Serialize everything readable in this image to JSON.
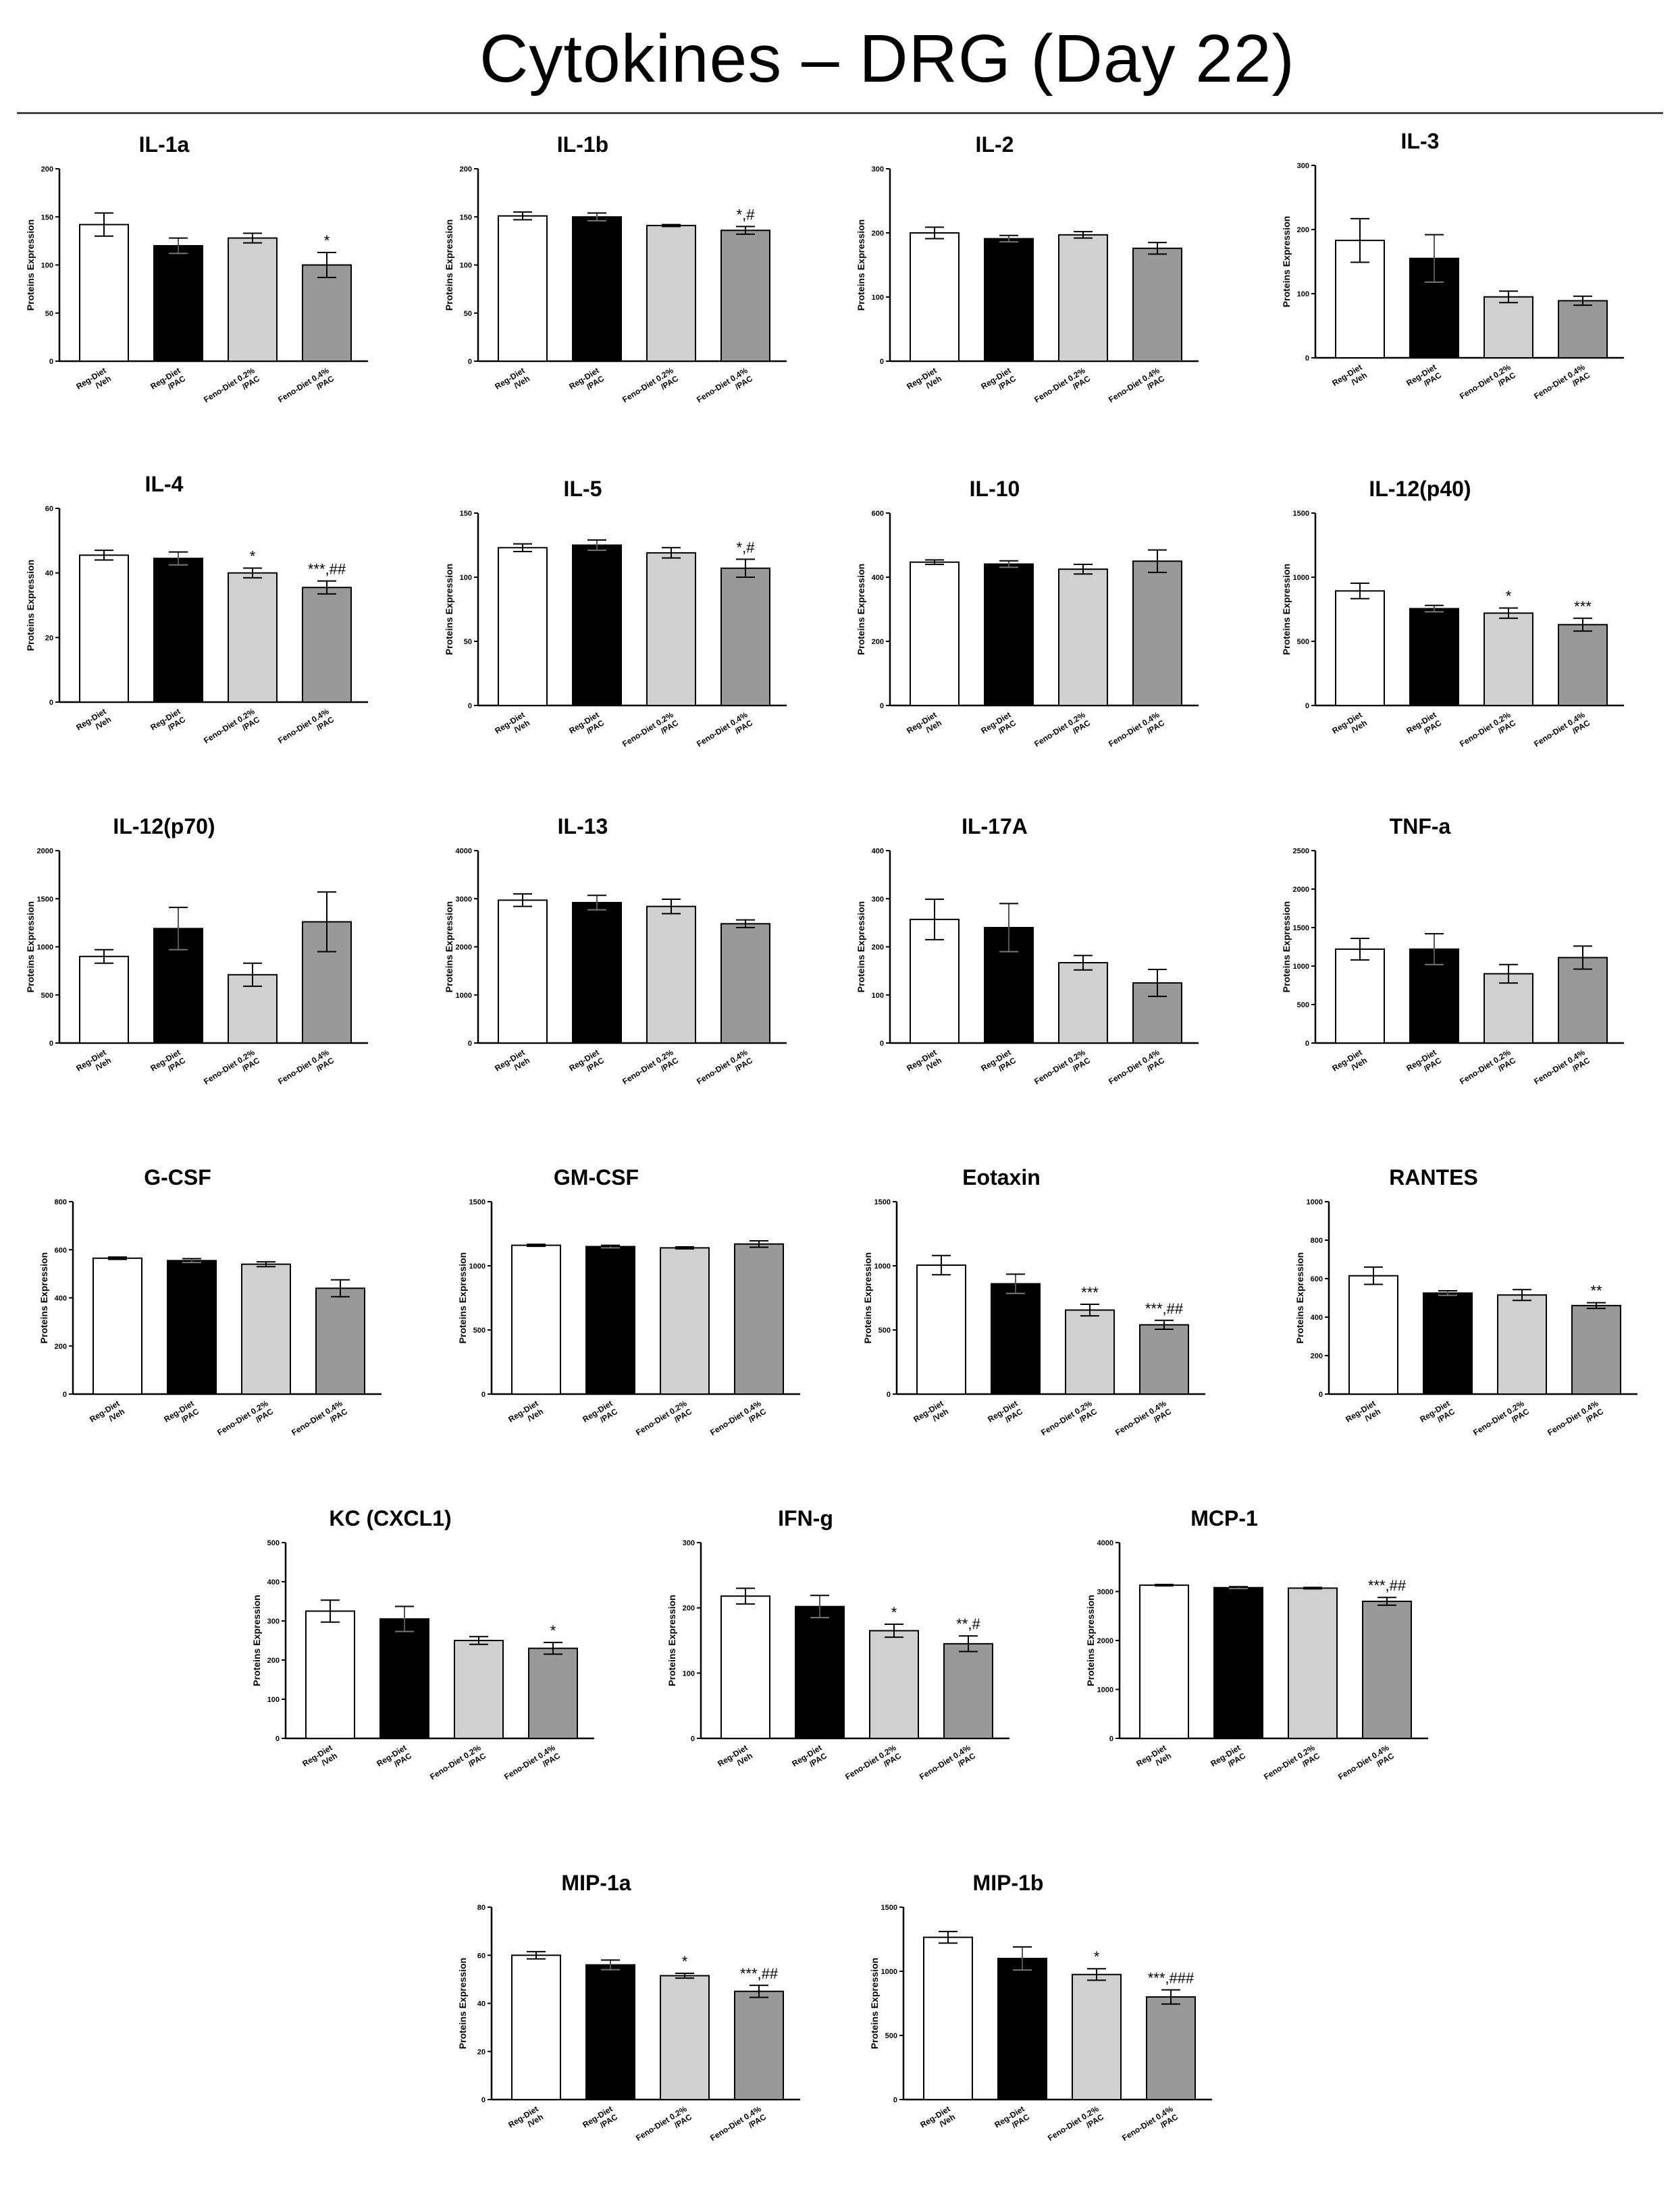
{
  "page": {
    "title": "Cytokines – DRG (Day 22)"
  },
  "styles": {
    "bar_colors": [
      "#ffffff",
      "#000000",
      "#d0d0d0",
      "#999999"
    ],
    "stroke": "#000000"
  },
  "chart_data": [
    {
      "type": "bar",
      "title": "IL-1a",
      "ylabel": "Proteins Expression",
      "ylim": [
        0,
        200
      ],
      "yticks": [
        0,
        50,
        100,
        150,
        200
      ],
      "categories": [
        "Reg-Diet /Veh",
        "Reg-Diet /PAC",
        "Feno-Diet 0.2% /PAC",
        "Feno-Diet 0.4% /PAC"
      ],
      "values": [
        142,
        120,
        128,
        100
      ],
      "errors": [
        12,
        8,
        5,
        13
      ],
      "annotations": [
        "",
        "",
        "",
        "*"
      ]
    },
    {
      "type": "bar",
      "title": "IL-1b",
      "ylabel": "Proteins Expression",
      "ylim": [
        0,
        200
      ],
      "yticks": [
        0,
        50,
        100,
        150,
        200
      ],
      "categories": [
        "Reg-Diet /Veh",
        "Reg-Diet /PAC",
        "Feno-Diet 0.2% /PAC",
        "Feno-Diet 0.4% /PAC"
      ],
      "values": [
        151,
        150,
        141,
        136
      ],
      "errors": [
        4,
        4,
        1,
        4
      ],
      "annotations": [
        "",
        "",
        "",
        "*,#"
      ]
    },
    {
      "type": "bar",
      "title": "IL-2",
      "ylabel": "Proteins Expression",
      "ylim": [
        0,
        300
      ],
      "yticks": [
        0,
        100,
        200,
        300
      ],
      "categories": [
        "Reg-Diet /Veh",
        "Reg-Diet /PAC",
        "Feno-Diet 0.2% /PAC",
        "Feno-Diet 0.4% /PAC"
      ],
      "values": [
        200,
        191,
        197,
        176
      ],
      "errors": [
        9,
        5,
        5,
        9
      ],
      "annotations": [
        "",
        "",
        "",
        ""
      ]
    },
    {
      "type": "bar",
      "title": "IL-3",
      "ylabel": "Proteins Expression",
      "ylim": [
        0,
        300
      ],
      "yticks": [
        0,
        100,
        200,
        300
      ],
      "categories": [
        "Reg-Diet /Veh",
        "Reg-Diet /PAC",
        "Feno-Diet 0.2% /PAC",
        "Feno-Diet 0.4% /PAC"
      ],
      "values": [
        183,
        155,
        95,
        89
      ],
      "errors": [
        34,
        37,
        9,
        7
      ],
      "annotations": [
        "",
        "",
        "",
        ""
      ]
    },
    {
      "type": "bar",
      "title": "IL-4",
      "ylabel": "Proteins Expression",
      "ylim": [
        0,
        60
      ],
      "yticks": [
        0,
        20,
        40,
        60
      ],
      "categories": [
        "Reg-Diet /Veh",
        "Reg-Diet /PAC",
        "Feno-Diet 0.2% /PAC",
        "Feno-Diet 0.4% /PAC"
      ],
      "values": [
        45.5,
        44.5,
        40,
        35.5
      ],
      "errors": [
        1.5,
        2,
        1.5,
        2
      ],
      "annotations": [
        "",
        "",
        "*",
        "***,##"
      ]
    },
    {
      "type": "bar",
      "title": "IL-5",
      "ylabel": "Proteins Expression",
      "ylim": [
        0,
        150
      ],
      "yticks": [
        0,
        50,
        100,
        150
      ],
      "categories": [
        "Reg-Diet /Veh",
        "Reg-Diet /PAC",
        "Feno-Diet 0.2% /PAC",
        "Feno-Diet 0.4% /PAC"
      ],
      "values": [
        123,
        125,
        119,
        107
      ],
      "errors": [
        3,
        4,
        4,
        7
      ],
      "annotations": [
        "",
        "",
        "",
        "*,#"
      ]
    },
    {
      "type": "bar",
      "title": "IL-10",
      "ylabel": "Proteins Expression",
      "ylim": [
        0,
        600
      ],
      "yticks": [
        0,
        200,
        400,
        600
      ],
      "categories": [
        "Reg-Diet /Veh",
        "Reg-Diet /PAC",
        "Feno-Diet 0.2% /PAC",
        "Feno-Diet 0.4% /PAC"
      ],
      "values": [
        447,
        441,
        425,
        450
      ],
      "errors": [
        7,
        10,
        15,
        35
      ],
      "annotations": [
        "",
        "",
        "",
        ""
      ]
    },
    {
      "type": "bar",
      "title": "IL-12(p40)",
      "ylabel": "Proteins Expression",
      "ylim": [
        0,
        1500
      ],
      "yticks": [
        0,
        500,
        1000,
        1500
      ],
      "categories": [
        "Reg-Diet /Veh",
        "Reg-Diet /PAC",
        "Feno-Diet 0.2% /PAC",
        "Feno-Diet 0.4% /PAC"
      ],
      "values": [
        893,
        755,
        720,
        630
      ],
      "errors": [
        60,
        25,
        40,
        50
      ],
      "annotations": [
        "",
        "",
        "*",
        "***"
      ]
    },
    {
      "type": "bar",
      "title": "IL-12(p70)",
      "ylabel": "Proteins Expression",
      "ylim": [
        0,
        2000
      ],
      "yticks": [
        0,
        500,
        1000,
        1500,
        2000
      ],
      "categories": [
        "Reg-Diet /Veh",
        "Reg-Diet /PAC",
        "Feno-Diet 0.2% /PAC",
        "Feno-Diet 0.4% /PAC"
      ],
      "values": [
        900,
        1190,
        710,
        1260
      ],
      "errors": [
        70,
        220,
        120,
        310
      ],
      "annotations": [
        "",
        "",
        "",
        ""
      ]
    },
    {
      "type": "bar",
      "title": "IL-13",
      "ylabel": "Proteins Expression",
      "ylim": [
        0,
        4000
      ],
      "yticks": [
        0,
        1000,
        2000,
        3000,
        4000
      ],
      "categories": [
        "Reg-Diet /Veh",
        "Reg-Diet /PAC",
        "Feno-Diet 0.2% /PAC",
        "Feno-Diet 0.4% /PAC"
      ],
      "values": [
        2970,
        2920,
        2840,
        2480
      ],
      "errors": [
        130,
        150,
        150,
        80
      ],
      "annotations": [
        "",
        "",
        "",
        ""
      ]
    },
    {
      "type": "bar",
      "title": "IL-17A",
      "ylabel": "Proteins Expression",
      "ylim": [
        0,
        400
      ],
      "yticks": [
        0,
        100,
        200,
        300,
        400
      ],
      "categories": [
        "Reg-Diet /Veh",
        "Reg-Diet /PAC",
        "Feno-Diet 0.2% /PAC",
        "Feno-Diet 0.4% /PAC"
      ],
      "values": [
        257,
        240,
        167,
        125
      ],
      "errors": [
        42,
        50,
        15,
        28
      ],
      "annotations": [
        "",
        "",
        "",
        ""
      ]
    },
    {
      "type": "bar",
      "title": "TNF-a",
      "ylabel": "Proteins Expression",
      "ylim": [
        0,
        2500
      ],
      "yticks": [
        0,
        500,
        1000,
        1500,
        2000,
        2500
      ],
      "categories": [
        "Reg-Diet /Veh",
        "Reg-Diet /PAC",
        "Feno-Diet 0.2% /PAC",
        "Feno-Diet 0.4% /PAC"
      ],
      "values": [
        1220,
        1220,
        900,
        1110
      ],
      "errors": [
        140,
        200,
        120,
        150
      ],
      "annotations": [
        "",
        "",
        "",
        ""
      ]
    },
    {
      "type": "bar",
      "title": "G-CSF",
      "ylabel": "Proteins Expression",
      "ylim": [
        0,
        800
      ],
      "yticks": [
        0,
        200,
        400,
        600,
        800
      ],
      "categories": [
        "Reg-Diet /Veh",
        "Reg-Diet /PAC",
        "Feno-Diet 0.2% /PAC",
        "Feno-Diet 0.4% /PAC"
      ],
      "values": [
        565,
        555,
        540,
        440
      ],
      "errors": [
        5,
        8,
        10,
        35
      ],
      "annotations": [
        "",
        "",
        "",
        ""
      ]
    },
    {
      "type": "bar",
      "title": "GM-CSF",
      "ylabel": "Proteins Expression",
      "ylim": [
        0,
        1500
      ],
      "yticks": [
        0,
        500,
        1000,
        1500
      ],
      "categories": [
        "Reg-Diet /Veh",
        "Reg-Diet /PAC",
        "Feno-Diet 0.2% /PAC",
        "Feno-Diet 0.4% /PAC"
      ],
      "values": [
        1160,
        1150,
        1140,
        1170
      ],
      "errors": [
        8,
        10,
        8,
        25
      ],
      "annotations": [
        "",
        "",
        "",
        ""
      ]
    },
    {
      "type": "bar",
      "title": "Eotaxin",
      "ylabel": "Proteins Expression",
      "ylim": [
        0,
        1500
      ],
      "yticks": [
        0,
        500,
        1000,
        1500
      ],
      "categories": [
        "Reg-Diet /Veh",
        "Reg-Diet /PAC",
        "Feno-Diet 0.2% /PAC",
        "Feno-Diet 0.4% /PAC"
      ],
      "values": [
        1005,
        860,
        655,
        540
      ],
      "errors": [
        75,
        75,
        45,
        35
      ],
      "annotations": [
        "",
        "",
        "***",
        "***,##"
      ]
    },
    {
      "type": "bar",
      "title": "RANTES",
      "ylabel": "Proteins Expression",
      "ylim": [
        0,
        1000
      ],
      "yticks": [
        0,
        200,
        400,
        600,
        800,
        1000
      ],
      "categories": [
        "Reg-Diet /Veh",
        "Reg-Diet /PAC",
        "Feno-Diet 0.2% /PAC",
        "Feno-Diet 0.4% /PAC"
      ],
      "values": [
        615,
        525,
        515,
        460
      ],
      "errors": [
        45,
        12,
        28,
        15
      ],
      "annotations": [
        "",
        "",
        "",
        "**"
      ]
    },
    {
      "type": "bar",
      "title": "KC (CXCL1)",
      "ylabel": "Proteins Expression",
      "ylim": [
        0,
        500
      ],
      "yticks": [
        0,
        100,
        200,
        300,
        400,
        500
      ],
      "categories": [
        "Reg-Diet /Veh",
        "Reg-Diet /PAC",
        "Feno-Diet 0.2% /PAC",
        "Feno-Diet 0.4% /PAC"
      ],
      "values": [
        325,
        305,
        250,
        230
      ],
      "errors": [
        28,
        32,
        10,
        15
      ],
      "annotations": [
        "",
        "",
        "",
        "*"
      ]
    },
    {
      "type": "bar",
      "title": "IFN-g",
      "ylabel": "Proteins Expression",
      "ylim": [
        0,
        300
      ],
      "yticks": [
        0,
        100,
        200,
        300
      ],
      "categories": [
        "Reg-Diet /Veh",
        "Reg-Diet /PAC",
        "Feno-Diet 0.2% /PAC",
        "Feno-Diet 0.4% /PAC"
      ],
      "values": [
        218,
        202,
        165,
        145
      ],
      "errors": [
        12,
        17,
        10,
        12
      ],
      "annotations": [
        "",
        "",
        "*",
        "**,#"
      ]
    },
    {
      "type": "bar",
      "title": "MCP-1",
      "ylabel": "Proteins Expression",
      "ylim": [
        0,
        4000
      ],
      "yticks": [
        0,
        1000,
        2000,
        3000,
        4000
      ],
      "categories": [
        "Reg-Diet /Veh",
        "Reg-Diet /PAC",
        "Feno-Diet 0.2% /PAC",
        "Feno-Diet 0.4% /PAC"
      ],
      "values": [
        3130,
        3080,
        3070,
        2800
      ],
      "errors": [
        15,
        20,
        15,
        80
      ],
      "annotations": [
        "",
        "",
        "",
        "***,##"
      ]
    },
    {
      "type": "bar",
      "title": "MIP-1a",
      "ylabel": "Proteins Expression",
      "ylim": [
        0,
        80
      ],
      "yticks": [
        0,
        20,
        40,
        60,
        80
      ],
      "categories": [
        "Reg-Diet /Veh",
        "Reg-Diet /PAC",
        "Feno-Diet 0.2% /PAC",
        "Feno-Diet 0.4% /PAC"
      ],
      "values": [
        60,
        56,
        51.5,
        45
      ],
      "errors": [
        1.5,
        2,
        1,
        2.5
      ],
      "annotations": [
        "",
        "",
        "*",
        "***,##"
      ]
    },
    {
      "type": "bar",
      "title": "MIP-1b",
      "ylabel": "Proteins Expression",
      "ylim": [
        0,
        1500
      ],
      "yticks": [
        0,
        500,
        1000,
        1500
      ],
      "categories": [
        "Reg-Diet /Veh",
        "Reg-Diet /PAC",
        "Feno-Diet 0.2% /PAC",
        "Feno-Diet 0.4% /PAC"
      ],
      "values": [
        1265,
        1100,
        975,
        800
      ],
      "errors": [
        45,
        90,
        45,
        55
      ],
      "annotations": [
        "",
        "",
        "*",
        "***,###"
      ]
    }
  ]
}
